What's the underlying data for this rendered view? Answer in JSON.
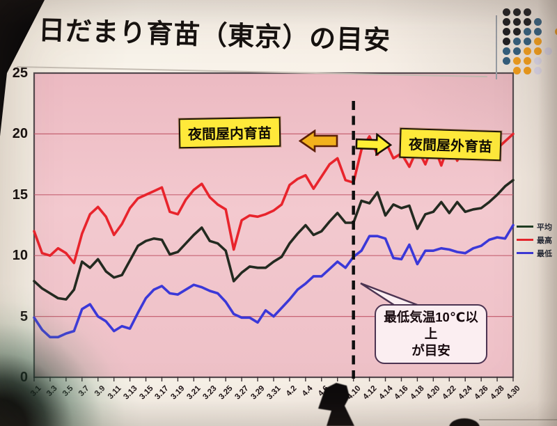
{
  "slide": {
    "title": "日だまり育苗（東京）の目安"
  },
  "annotations": {
    "indoor": "夜間屋内育苗",
    "outdoor": "夜間屋外育苗",
    "callout_line1": "最低気温10℃以上",
    "callout_line2": "が目安"
  },
  "legend": {
    "items": [
      {
        "label": "平均",
        "color": "#1e3d22"
      },
      {
        "label": "最高",
        "color": "#e8242c"
      },
      {
        "label": "最低",
        "color": "#3b38d8"
      }
    ]
  },
  "chart_data": {
    "type": "line",
    "title": "日だまり育苗（東京）の目安",
    "xlabel": "",
    "ylabel": "",
    "ylim": [
      0,
      25
    ],
    "yticks": [
      0,
      5,
      10,
      15,
      20,
      25
    ],
    "grid": true,
    "legend_position": "right",
    "plot_bg_color": "#f0c4ca",
    "gridline_color": "#c2596a",
    "x_tick_labels": [
      "3.1",
      "3.3",
      "3.5",
      "3.7",
      "3.9",
      "3.11",
      "3.13",
      "3.15",
      "3.17",
      "3.19",
      "3.21",
      "3.23",
      "3.25",
      "3.27",
      "3.29",
      "3.31",
      "4.2",
      "4.4",
      "4.6",
      "4.8",
      "4.10",
      "4.12",
      "4.14",
      "4.16",
      "4.18",
      "4.20",
      "4.22",
      "4.24",
      "4.26",
      "4.28",
      "4.30"
    ],
    "x_days_total": 61,
    "divider": {
      "at_label": "4.10",
      "style": "vertical-dashed",
      "color": "#0f0f0f"
    },
    "series": [
      {
        "name": "平均",
        "color": "#232a20",
        "values": [
          7.9,
          7.3,
          6.9,
          6.5,
          6.4,
          7.2,
          9.5,
          9.0,
          9.7,
          8.7,
          8.2,
          8.4,
          9.6,
          10.8,
          11.2,
          11.4,
          11.3,
          10.1,
          10.3,
          11.0,
          11.7,
          12.3,
          11.2,
          11.0,
          10.4,
          7.9,
          8.6,
          9.1,
          9.0,
          9.0,
          9.5,
          9.9,
          11.0,
          11.8,
          12.5,
          11.7,
          12.0,
          12.8,
          13.5,
          12.7,
          12.7,
          14.5,
          14.3,
          15.2,
          13.3,
          14.2,
          13.9,
          14.1,
          12.2,
          13.4,
          13.6,
          14.4,
          13.5,
          14.4,
          13.6,
          13.8,
          13.9,
          14.4,
          15.0,
          15.7,
          16.2
        ]
      },
      {
        "name": "最高",
        "color": "#e8242c",
        "values": [
          12.0,
          10.2,
          10.0,
          10.6,
          10.2,
          9.4,
          11.8,
          13.4,
          14.0,
          13.2,
          11.7,
          12.6,
          13.9,
          14.7,
          15.0,
          15.3,
          15.6,
          13.6,
          13.4,
          14.6,
          15.4,
          15.9,
          14.8,
          14.2,
          13.8,
          10.5,
          12.9,
          13.3,
          13.2,
          13.4,
          13.7,
          14.2,
          15.8,
          16.3,
          16.6,
          15.5,
          16.5,
          17.5,
          18.0,
          16.2,
          16.0,
          18.7,
          19.8,
          18.3,
          19.4,
          18.0,
          18.4,
          17.3,
          18.8,
          17.5,
          19.2,
          17.4,
          19.3,
          17.8,
          19.3,
          18.2,
          19.0,
          18.3,
          18.8,
          19.4,
          20.0
        ]
      },
      {
        "name": "最低",
        "color": "#3b38d8",
        "values": [
          4.9,
          3.9,
          3.3,
          3.3,
          3.6,
          3.8,
          5.6,
          6.0,
          5.0,
          4.6,
          3.8,
          4.2,
          4.0,
          5.3,
          6.5,
          7.2,
          7.5,
          6.9,
          6.8,
          7.2,
          7.6,
          7.4,
          7.1,
          6.9,
          6.2,
          5.2,
          4.9,
          4.9,
          4.5,
          5.5,
          5.0,
          5.7,
          6.4,
          7.2,
          7.7,
          8.3,
          8.3,
          8.9,
          9.5,
          9.0,
          9.9,
          10.4,
          11.6,
          11.6,
          11.4,
          9.8,
          9.7,
          10.9,
          9.3,
          10.4,
          10.4,
          10.6,
          10.5,
          10.3,
          10.2,
          10.6,
          10.8,
          11.3,
          11.5,
          11.4,
          12.5
        ]
      }
    ]
  },
  "logo": {
    "colors": {
      "k": "#17171b",
      "n": "#2d5c7e",
      "o": "#f59d16",
      "l": "#dcd8ea"
    },
    "rows": [
      [
        "k",
        "k",
        "k"
      ],
      [
        "k",
        "k",
        "k",
        "n"
      ],
      [
        "k",
        "k",
        "n",
        "n",
        ".",
        "o"
      ],
      [
        "k",
        "n",
        "n",
        "o"
      ],
      [
        "n",
        "n",
        "o",
        "o",
        "l"
      ],
      [
        "n",
        "o",
        "o",
        "l"
      ],
      [
        ".",
        "o",
        "o",
        "l"
      ]
    ]
  }
}
